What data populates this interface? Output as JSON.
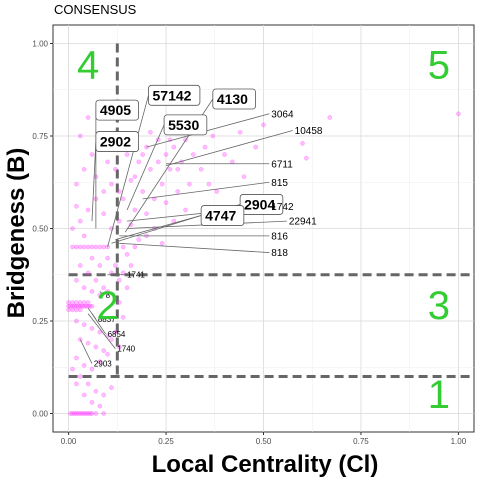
{
  "chart_data": {
    "type": "scatter",
    "title": "CONSENSUS",
    "xlabel": "Local Centrality (Cl)",
    "ylabel": "Bridgeness (B)",
    "xlim": [
      -0.04,
      1.04
    ],
    "ylim": [
      -0.05,
      1.05
    ],
    "x_ticks": [
      0.0,
      0.25,
      0.5,
      0.75,
      1.0
    ],
    "x_tick_labels": [
      "0.00",
      "0.25",
      "0.50",
      "0.75",
      "1.00"
    ],
    "y_ticks": [
      0.0,
      0.25,
      0.5,
      0.75,
      1.0
    ],
    "y_tick_labels": [
      "0.00",
      "0.25",
      "0.50",
      "0.75",
      "1.00"
    ],
    "grid": true,
    "point_color": "#ff33ff",
    "region_color": "#33cc33",
    "thresholds": {
      "vertical_x": 0.125,
      "vertical_y_range": [
        0.1,
        1.0
      ],
      "horizontal_y": [
        0.1,
        0.375
      ]
    },
    "regions": [
      {
        "label": "1",
        "x": 0.95,
        "y": 0.05
      },
      {
        "label": "2",
        "x": 0.1,
        "y": 0.29
      },
      {
        "label": "3",
        "x": 0.95,
        "y": 0.29
      },
      {
        "label": "4",
        "x": 0.05,
        "y": 0.94
      },
      {
        "label": "5",
        "x": 0.95,
        "y": 0.94
      }
    ],
    "annotations": [
      {
        "label": "4905",
        "tx": 0.07,
        "ty": 0.82,
        "px": 0.07,
        "py": 0.5,
        "boxed": true,
        "size": "big"
      },
      {
        "label": "2902",
        "tx": 0.07,
        "ty": 0.735,
        "px": 0.06,
        "py": 0.52,
        "boxed": true,
        "size": "big"
      },
      {
        "label": "57142",
        "tx": 0.205,
        "ty": 0.86,
        "px": 0.1,
        "py": 0.45,
        "boxed": true,
        "size": "big"
      },
      {
        "label": "4130",
        "tx": 0.37,
        "ty": 0.85,
        "px": 0.145,
        "py": 0.49,
        "boxed": true,
        "size": "big"
      },
      {
        "label": "5530",
        "tx": 0.245,
        "ty": 0.78,
        "px": 0.15,
        "py": 0.55,
        "boxed": true,
        "size": "big"
      },
      {
        "label": "2904",
        "tx": 0.44,
        "ty": 0.565,
        "px": 0.12,
        "py": 0.47,
        "boxed": true,
        "size": "big"
      },
      {
        "label": "4747",
        "tx": 0.34,
        "ty": 0.535,
        "px": 0.11,
        "py": 0.46,
        "boxed": true,
        "size": "big"
      },
      {
        "label": "3064",
        "tx": 0.52,
        "ty": 0.81,
        "px": 0.2,
        "py": 0.72,
        "boxed": false,
        "size": "med"
      },
      {
        "label": "10458",
        "tx": 0.58,
        "ty": 0.765,
        "px": 0.25,
        "py": 0.67,
        "boxed": false,
        "size": "med"
      },
      {
        "label": "6711",
        "tx": 0.52,
        "ty": 0.675,
        "px": 0.25,
        "py": 0.675,
        "boxed": false,
        "size": "med"
      },
      {
        "label": "815",
        "tx": 0.52,
        "ty": 0.625,
        "px": 0.19,
        "py": 0.58,
        "boxed": false,
        "size": "med"
      },
      {
        "label": "1742",
        "tx": 0.52,
        "ty": 0.56,
        "px": 0.15,
        "py": 0.52,
        "boxed": false,
        "size": "med"
      },
      {
        "label": "22941",
        "tx": 0.565,
        "ty": 0.52,
        "px": 0.15,
        "py": 0.5,
        "boxed": false,
        "size": "med"
      },
      {
        "label": "816",
        "tx": 0.52,
        "ty": 0.48,
        "px": 0.13,
        "py": 0.48,
        "boxed": false,
        "size": "med"
      },
      {
        "label": "818",
        "tx": 0.52,
        "ty": 0.435,
        "px": 0.13,
        "py": 0.46,
        "boxed": false,
        "size": "med"
      },
      {
        "label": "1741",
        "tx": 0.15,
        "ty": 0.375,
        "px": 0.1,
        "py": 0.375,
        "boxed": false,
        "size": "small"
      },
      {
        "label": "8",
        "tx": 0.095,
        "ty": 0.32,
        "px": 0.08,
        "py": 0.33,
        "boxed": false,
        "size": "small"
      },
      {
        "label": "8837",
        "tx": 0.075,
        "ty": 0.255,
        "px": 0.05,
        "py": 0.285,
        "boxed": false,
        "size": "small"
      },
      {
        "label": "6854",
        "tx": 0.1,
        "ty": 0.215,
        "px": 0.06,
        "py": 0.27,
        "boxed": false,
        "size": "small"
      },
      {
        "label": "1740",
        "tx": 0.125,
        "ty": 0.175,
        "px": 0.05,
        "py": 0.27,
        "boxed": false,
        "size": "small"
      },
      {
        "label": "2903",
        "tx": 0.065,
        "ty": 0.135,
        "px": 0.03,
        "py": 0.2,
        "boxed": false,
        "size": "small"
      }
    ],
    "points": [
      [
        1.0,
        0.81
      ],
      [
        0.67,
        0.8
      ],
      [
        0.6,
        0.73
      ],
      [
        0.61,
        0.69
      ],
      [
        0.5,
        0.78
      ],
      [
        0.48,
        0.72
      ],
      [
        0.44,
        0.76
      ],
      [
        0.42,
        0.68
      ],
      [
        0.4,
        0.7
      ],
      [
        0.37,
        0.75
      ],
      [
        0.35,
        0.72
      ],
      [
        0.34,
        0.66
      ],
      [
        0.33,
        0.77
      ],
      [
        0.32,
        0.7
      ],
      [
        0.31,
        0.62
      ],
      [
        0.3,
        0.74
      ],
      [
        0.29,
        0.68
      ],
      [
        0.28,
        0.6
      ],
      [
        0.27,
        0.72
      ],
      [
        0.26,
        0.66
      ],
      [
        0.25,
        0.7
      ],
      [
        0.24,
        0.62
      ],
      [
        0.23,
        0.74
      ],
      [
        0.22,
        0.58
      ],
      [
        0.21,
        0.66
      ],
      [
        0.2,
        0.72
      ],
      [
        0.19,
        0.6
      ],
      [
        0.18,
        0.68
      ],
      [
        0.17,
        0.55
      ],
      [
        0.16,
        0.63
      ],
      [
        0.15,
        0.7
      ],
      [
        0.14,
        0.58
      ],
      [
        0.13,
        0.52
      ],
      [
        0.12,
        0.66
      ],
      [
        0.3,
        0.55
      ],
      [
        0.27,
        0.52
      ],
      [
        0.25,
        0.57
      ],
      [
        0.22,
        0.5
      ],
      [
        0.2,
        0.54
      ],
      [
        0.18,
        0.47
      ],
      [
        0.16,
        0.51
      ],
      [
        0.14,
        0.45
      ],
      [
        0.13,
        0.6
      ],
      [
        0.17,
        0.64
      ],
      [
        0.19,
        0.7
      ],
      [
        0.21,
        0.76
      ],
      [
        0.23,
        0.68
      ],
      [
        0.26,
        0.74
      ],
      [
        0.28,
        0.66
      ],
      [
        0.36,
        0.62
      ],
      [
        0.38,
        0.6
      ],
      [
        0.45,
        0.64
      ],
      [
        0.15,
        0.43
      ],
      [
        0.17,
        0.45
      ],
      [
        0.2,
        0.48
      ],
      [
        0.24,
        0.46
      ],
      [
        0.12,
        0.4
      ],
      [
        0.14,
        0.38
      ],
      [
        0.16,
        0.4
      ],
      [
        0.13,
        0.36
      ],
      [
        0.15,
        0.34
      ],
      [
        0.13,
        0.3
      ],
      [
        0.14,
        0.26
      ],
      [
        0.12,
        0.22
      ],
      [
        0.13,
        0.18
      ],
      [
        0.01,
        0.0
      ],
      [
        0.02,
        0.0
      ],
      [
        0.03,
        0.0
      ],
      [
        0.04,
        0.0
      ],
      [
        0.05,
        0.0
      ],
      [
        0.06,
        0.0
      ],
      [
        0.07,
        0.0
      ],
      [
        0.09,
        0.0
      ],
      [
        0.005,
        0.0
      ],
      [
        0.015,
        0.0
      ],
      [
        0.025,
        0.0
      ],
      [
        0.035,
        0.0
      ],
      [
        0.045,
        0.0
      ],
      [
        0.055,
        0.0
      ],
      [
        0.0,
        0.29
      ],
      [
        0.005,
        0.29
      ],
      [
        0.01,
        0.29
      ],
      [
        0.015,
        0.29
      ],
      [
        0.02,
        0.29
      ],
      [
        0.025,
        0.29
      ],
      [
        0.03,
        0.29
      ],
      [
        0.035,
        0.29
      ],
      [
        0.04,
        0.29
      ],
      [
        0.045,
        0.29
      ],
      [
        0.05,
        0.29
      ],
      [
        0.055,
        0.29
      ],
      [
        0.06,
        0.29
      ],
      [
        0.0,
        0.3
      ],
      [
        0.01,
        0.3
      ],
      [
        0.02,
        0.3
      ],
      [
        0.03,
        0.3
      ],
      [
        0.04,
        0.3
      ],
      [
        0.05,
        0.3
      ],
      [
        0.0,
        0.28
      ],
      [
        0.01,
        0.28
      ],
      [
        0.02,
        0.28
      ],
      [
        0.03,
        0.28
      ],
      [
        0.01,
        0.45
      ],
      [
        0.02,
        0.45
      ],
      [
        0.03,
        0.45
      ],
      [
        0.04,
        0.45
      ],
      [
        0.05,
        0.45
      ],
      [
        0.06,
        0.45
      ],
      [
        0.07,
        0.45
      ],
      [
        0.08,
        0.45
      ],
      [
        0.09,
        0.45
      ],
      [
        0.1,
        0.45
      ],
      [
        0.01,
        0.5
      ],
      [
        0.03,
        0.52
      ],
      [
        0.05,
        0.55
      ],
      [
        0.07,
        0.58
      ],
      [
        0.09,
        0.6
      ],
      [
        0.11,
        0.62
      ],
      [
        0.02,
        0.62
      ],
      [
        0.04,
        0.66
      ],
      [
        0.06,
        0.7
      ],
      [
        0.08,
        0.74
      ],
      [
        0.1,
        0.68
      ],
      [
        0.03,
        0.75
      ],
      [
        0.05,
        0.8
      ],
      [
        0.07,
        0.64
      ],
      [
        0.09,
        0.54
      ],
      [
        0.11,
        0.5
      ],
      [
        0.02,
        0.56
      ],
      [
        0.04,
        0.48
      ],
      [
        0.06,
        0.42
      ],
      [
        0.08,
        0.4
      ],
      [
        0.1,
        0.42
      ],
      [
        0.03,
        0.4
      ],
      [
        0.05,
        0.38
      ],
      [
        0.07,
        0.36
      ],
      [
        0.09,
        0.34
      ],
      [
        0.11,
        0.38
      ],
      [
        0.02,
        0.36
      ],
      [
        0.04,
        0.34
      ],
      [
        0.06,
        0.33
      ],
      [
        0.08,
        0.32
      ],
      [
        0.1,
        0.33
      ],
      [
        0.02,
        0.25
      ],
      [
        0.04,
        0.24
      ],
      [
        0.06,
        0.23
      ],
      [
        0.08,
        0.22
      ],
      [
        0.1,
        0.21
      ],
      [
        0.03,
        0.2
      ],
      [
        0.05,
        0.19
      ],
      [
        0.07,
        0.18
      ],
      [
        0.09,
        0.17
      ],
      [
        0.11,
        0.2
      ],
      [
        0.02,
        0.15
      ],
      [
        0.04,
        0.13
      ],
      [
        0.06,
        0.12
      ],
      [
        0.08,
        0.14
      ],
      [
        0.1,
        0.16
      ],
      [
        0.03,
        0.1
      ],
      [
        0.05,
        0.08
      ],
      [
        0.07,
        0.06
      ],
      [
        0.09,
        0.05
      ],
      [
        0.11,
        0.07
      ],
      [
        0.01,
        0.12
      ],
      [
        0.02,
        0.08
      ],
      [
        0.04,
        0.05
      ],
      [
        0.06,
        0.03
      ],
      [
        0.08,
        0.02
      ]
    ]
  }
}
